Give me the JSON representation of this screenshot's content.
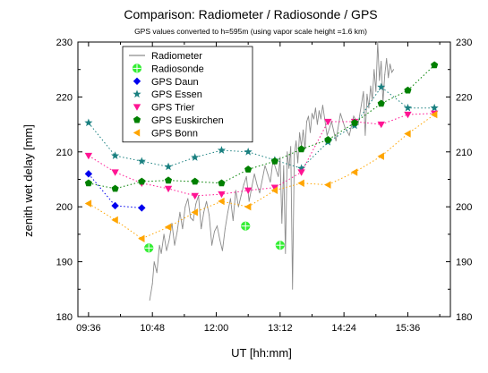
{
  "chart_data": {
    "type": "scatter",
    "title": "Comparison: Radiometer / Radiosonde / GPS",
    "subtitle": "GPS values converted to h=595m (using vapor scale height =1.6 km)",
    "xlabel": "UT [hh:mm]",
    "ylabel": "zenith wet delay [mm]",
    "xlim": [
      "09:24",
      "16:24"
    ],
    "ylim": [
      180,
      230
    ],
    "x_ticks": [
      "09:36",
      "10:48",
      "12:00",
      "13:12",
      "14:24",
      "15:36"
    ],
    "y_ticks": [
      180,
      190,
      200,
      210,
      220,
      230
    ],
    "y_ticks_right": [
      180,
      190,
      200,
      210,
      220,
      230
    ],
    "grid": false,
    "legend_position": "top-left",
    "legend": [
      "Radiometer",
      "Radiosonde",
      "GPS Daun",
      "GPS Essen",
      "GPS Trier",
      "GPS Euskirchen",
      "GPS Bonn"
    ],
    "series": [
      {
        "name": "Radiometer",
        "marker": "line",
        "color": "#8c8c8c",
        "x": [
          "10:45",
          "10:48",
          "10:50",
          "10:53",
          "10:56",
          "10:58",
          "11:01",
          "11:04",
          "11:07",
          "11:10",
          "11:13",
          "11:16",
          "11:19",
          "11:22",
          "11:25",
          "11:28",
          "11:31",
          "11:34",
          "11:37",
          "11:40",
          "11:43",
          "11:46",
          "11:49",
          "11:52",
          "11:55",
          "11:58",
          "12:01",
          "12:04",
          "12:07",
          "12:10",
          "12:13",
          "12:16",
          "12:19",
          "12:22",
          "12:25",
          "12:28",
          "12:31",
          "12:34",
          "12:37",
          "12:40",
          "12:43",
          "12:46",
          "12:49",
          "12:52",
          "12:55",
          "12:58",
          "13:01",
          "13:04",
          "13:07",
          "13:10",
          "13:12",
          "13:14",
          "13:16",
          "13:18",
          "13:20",
          "13:22",
          "13:24",
          "13:26",
          "13:28",
          "13:30",
          "13:32",
          "13:34",
          "13:36",
          "13:38",
          "13:40",
          "13:42",
          "13:44",
          "13:46",
          "13:48",
          "13:50",
          "13:52",
          "13:54",
          "13:56",
          "13:58",
          "14:00",
          "14:05",
          "14:10",
          "14:15",
          "14:20",
          "14:25",
          "14:30",
          "14:35",
          "14:40",
          "14:44",
          "14:46",
          "14:48",
          "14:50",
          "14:52",
          "14:54",
          "14:56",
          "14:58",
          "15:00",
          "15:02",
          "15:04",
          "15:06",
          "15:08",
          "15:10",
          "15:12",
          "15:14",
          "15:16",
          "15:18",
          "15:20"
        ],
        "values": [
          183.0,
          186.0,
          190.0,
          188.0,
          193.0,
          191.5,
          195.0,
          192.0,
          194.0,
          197.0,
          193.0,
          195.5,
          199.0,
          196.0,
          200.0,
          201.5,
          198.0,
          197.5,
          200.5,
          202.0,
          196.0,
          199.0,
          201.0,
          198.5,
          193.0,
          195.5,
          196.5,
          194.0,
          192.0,
          196.0,
          199.0,
          201.5,
          197.5,
          203.0,
          200.0,
          202.0,
          204.0,
          205.5,
          201.0,
          203.5,
          206.0,
          204.0,
          202.5,
          205.0,
          207.5,
          206.0,
          204.5,
          208.5,
          207.0,
          205.5,
          209.0,
          197.0,
          207.5,
          191.5,
          210.0,
          207.0,
          211.0,
          185.0,
          209.5,
          212.0,
          208.0,
          213.5,
          211.0,
          214.0,
          210.5,
          215.5,
          216.5,
          213.5,
          217.0,
          216.0,
          218.0,
          215.0,
          217.5,
          216.0,
          218.5,
          213.0,
          215.5,
          212.0,
          217.0,
          214.5,
          213.0,
          216.5,
          215.0,
          219.0,
          221.0,
          213.0,
          220.5,
          218.0,
          222.0,
          219.5,
          225.0,
          221.0,
          230.0,
          223.0,
          226.5,
          219.0,
          224.0,
          227.0,
          223.5,
          226.0,
          224.5,
          225.0
        ]
      },
      {
        "name": "Radiosonde",
        "marker": "circle-cross",
        "color": "#33ee33",
        "x": [
          "10:44",
          "12:33",
          "13:12"
        ],
        "values": [
          192.5,
          196.5,
          193.0
        ]
      },
      {
        "name": "GPS Daun",
        "marker": "diamond",
        "color": "#0000ee",
        "x": [
          "09:36",
          "10:06",
          "10:36"
        ],
        "values": [
          206.0,
          200.2,
          199.8
        ]
      },
      {
        "name": "GPS Essen",
        "marker": "star",
        "color": "#1a8080",
        "x": [
          "09:36",
          "10:06",
          "10:36",
          "11:06",
          "11:36",
          "12:06",
          "12:36",
          "13:06",
          "13:36",
          "14:06",
          "14:36",
          "15:06",
          "15:36",
          "16:06"
        ],
        "values": [
          215.3,
          209.3,
          208.3,
          207.3,
          209.0,
          210.3,
          210.0,
          208.5,
          207.0,
          211.8,
          214.8,
          221.8,
          218.0,
          218.0
        ]
      },
      {
        "name": "GPS Trier",
        "marker": "triangle-down",
        "color": "#ff1493",
        "x": [
          "09:36",
          "10:06",
          "10:36",
          "11:06",
          "11:36",
          "12:06",
          "12:36",
          "13:06",
          "13:36",
          "14:06",
          "14:36",
          "15:06",
          "15:36",
          "16:06"
        ],
        "values": [
          209.3,
          206.3,
          204.3,
          203.3,
          202.0,
          202.3,
          203.0,
          203.5,
          206.3,
          215.5,
          215.5,
          215.0,
          216.8,
          217.0
        ]
      },
      {
        "name": "GPS Euskirchen",
        "marker": "pentagon",
        "color": "#008000",
        "x": [
          "09:36",
          "10:06",
          "10:36",
          "11:06",
          "11:36",
          "12:06",
          "12:36",
          "13:06",
          "13:36",
          "14:06",
          "14:36",
          "15:06",
          "15:36",
          "16:06"
        ],
        "values": [
          204.3,
          203.3,
          204.6,
          204.8,
          204.6,
          204.3,
          206.8,
          208.3,
          210.5,
          212.2,
          215.3,
          218.8,
          221.2,
          225.8
        ]
      },
      {
        "name": "GPS Bonn",
        "marker": "triangle-left",
        "color": "#ffa500",
        "x": [
          "09:36",
          "10:06",
          "10:36",
          "11:06",
          "11:36",
          "12:06",
          "12:36",
          "13:06",
          "13:36",
          "14:06",
          "14:36",
          "15:06",
          "15:36",
          "16:06"
        ],
        "values": [
          200.6,
          197.6,
          194.2,
          196.3,
          199.0,
          201.0,
          200.0,
          203.0,
          204.3,
          204.0,
          206.3,
          209.2,
          213.3,
          216.8
        ]
      }
    ]
  }
}
